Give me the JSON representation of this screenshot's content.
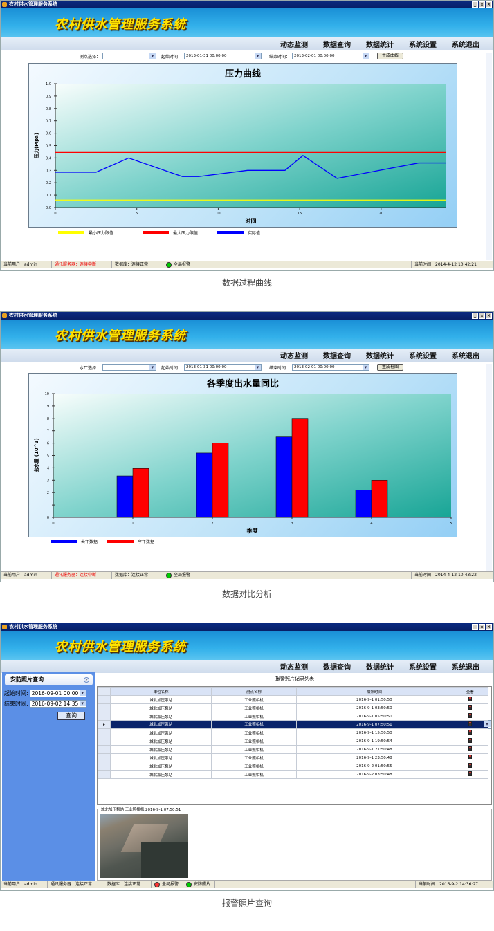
{
  "app": {
    "title": "农村供水管理服务系统",
    "window_title": "农村供水管理服务系统",
    "menu": [
      "动态监测",
      "数据查询",
      "数据统计",
      "系统设置",
      "系统退出"
    ],
    "window_buttons": [
      "_",
      "▫",
      "×"
    ]
  },
  "panel1": {
    "controls": {
      "point_label": "测点选择：",
      "point_value": "",
      "start_label": "起始时间：",
      "start_value": "2013-01-31 00:00:00",
      "end_label": "结束时间：",
      "end_value": "2013-02-01 00:00:00",
      "button": "生成曲线"
    },
    "legend": [
      "最小压力限值",
      "最大压力限值",
      "实际值"
    ],
    "status": {
      "user": "当前用户：admin",
      "server": "通讯服务器：连接中断",
      "db": "数据库：连接正常",
      "alarm": "全局报警",
      "time": "当前时间：2014-4-12 10:42:21"
    },
    "caption": "数据过程曲线"
  },
  "panel2": {
    "controls": {
      "point_label": "水厂选择：",
      "point_value": "",
      "start_label": "起始时间：",
      "start_value": "2013-01-31 00:00:00",
      "end_label": "结束时间：",
      "end_value": "2013-02-01 00:00:00",
      "button": "生成柱图"
    },
    "legend": [
      "去年数据",
      "今年数据"
    ],
    "status": {
      "user": "当前用户：admin",
      "server": "通讯服务器：连接中断",
      "db": "数据库：连接正常",
      "alarm": "全局报警",
      "time": "当前时间：2014-4-12 10:43:22"
    },
    "caption": "数据对比分析"
  },
  "panel3": {
    "sidebar": {
      "title": "安防照片查询",
      "start_label": "起始时间:",
      "start_value": "2016-09-01 00:00",
      "end_label": "结束时间:",
      "end_value": "2016-09-02 14:35",
      "query": "查询"
    },
    "list_title": "报警照片记录列表",
    "columns": [
      "单位名称",
      "测点名称",
      "拍照时间",
      "查看"
    ],
    "rows": [
      [
        "城北加压泵站",
        "工业照相机",
        "2016-9-1 01:50:50"
      ],
      [
        "城北加压泵站",
        "工业照相机",
        "2016-9-1 03:50:50"
      ],
      [
        "城北加压泵站",
        "工业照相机",
        "2016-9-1 05:50:50"
      ],
      [
        "城北加压泵站",
        "工业照相机",
        "2016-9-1 07:50:51"
      ],
      [
        "城北加压泵站",
        "工业照相机",
        "2016-9-1 15:50:50"
      ],
      [
        "城北加压泵站",
        "工业照相机",
        "2016-9-1 19:50:54"
      ],
      [
        "城北加压泵站",
        "工业照相机",
        "2016-9-1 21:50:48"
      ],
      [
        "城北加压泵站",
        "工业照相机",
        "2016-9-1 23:50:48"
      ],
      [
        "城北加压泵站",
        "工业照相机",
        "2016-9-2 01:50:55"
      ],
      [
        "城北加压泵站",
        "工业照相机",
        "2016-9-2 03:50:48"
      ]
    ],
    "selected_row": 3,
    "photo_caption": "城北加压泵站 工业照相机 2016-9-1 07:50:51",
    "status": {
      "user": "当前用户：admin",
      "server": "通讯服务器：连接正常",
      "db": "数据库：连接正常",
      "alarm": "全局报警",
      "photo": "安防照片",
      "time": "当前时间：2016-9-2 14:36:27"
    },
    "caption": "报警照片查询"
  },
  "chart_data": [
    {
      "type": "line",
      "title": "压力曲线",
      "xlabel": "时间",
      "ylabel": "压力(Mpa)",
      "xlim": [
        0,
        24
      ],
      "ylim": [
        0,
        1.0
      ],
      "xticks": [
        0,
        5,
        10,
        15,
        20
      ],
      "yticks": [
        0,
        0.1,
        0.2,
        0.3,
        0.4,
        0.5,
        0.6,
        0.7,
        0.8,
        0.9,
        1.0
      ],
      "grid": false,
      "series": [
        {
          "name": "最小压力限值",
          "color": "#ffff00",
          "x": [
            0,
            24
          ],
          "y": [
            0.06,
            0.06
          ]
        },
        {
          "name": "最大压力限值",
          "color": "#ff0000",
          "x": [
            0,
            24
          ],
          "y": [
            0.445,
            0.445
          ]
        },
        {
          "name": "实际值",
          "color": "#0000ff",
          "x": [
            0,
            2.5,
            4.5,
            7.8,
            8.8,
            11.8,
            14.1,
            15.2,
            17.3,
            22.3,
            24
          ],
          "y": [
            0.285,
            0.285,
            0.4,
            0.25,
            0.25,
            0.3,
            0.3,
            0.42,
            0.235,
            0.36,
            0.36
          ]
        }
      ]
    },
    {
      "type": "bar",
      "title": "各季度出水量同比",
      "xlabel": "季度",
      "ylabel": "出水量 (10^3)",
      "xlim": [
        0,
        5
      ],
      "ylim": [
        0,
        10
      ],
      "categories": [
        1,
        2,
        3,
        4
      ],
      "xticks": [
        0,
        1,
        2,
        3,
        4,
        5
      ],
      "yticks": [
        0,
        1,
        2,
        3,
        4,
        5,
        6,
        7,
        8,
        9,
        10
      ],
      "grid": false,
      "series": [
        {
          "name": "去年数据",
          "color": "#0000ff",
          "values": [
            3.35,
            5.2,
            6.5,
            2.2
          ]
        },
        {
          "name": "今年数据",
          "color": "#ff0000",
          "values": [
            3.95,
            6.0,
            7.95,
            3.0
          ]
        }
      ]
    }
  ]
}
